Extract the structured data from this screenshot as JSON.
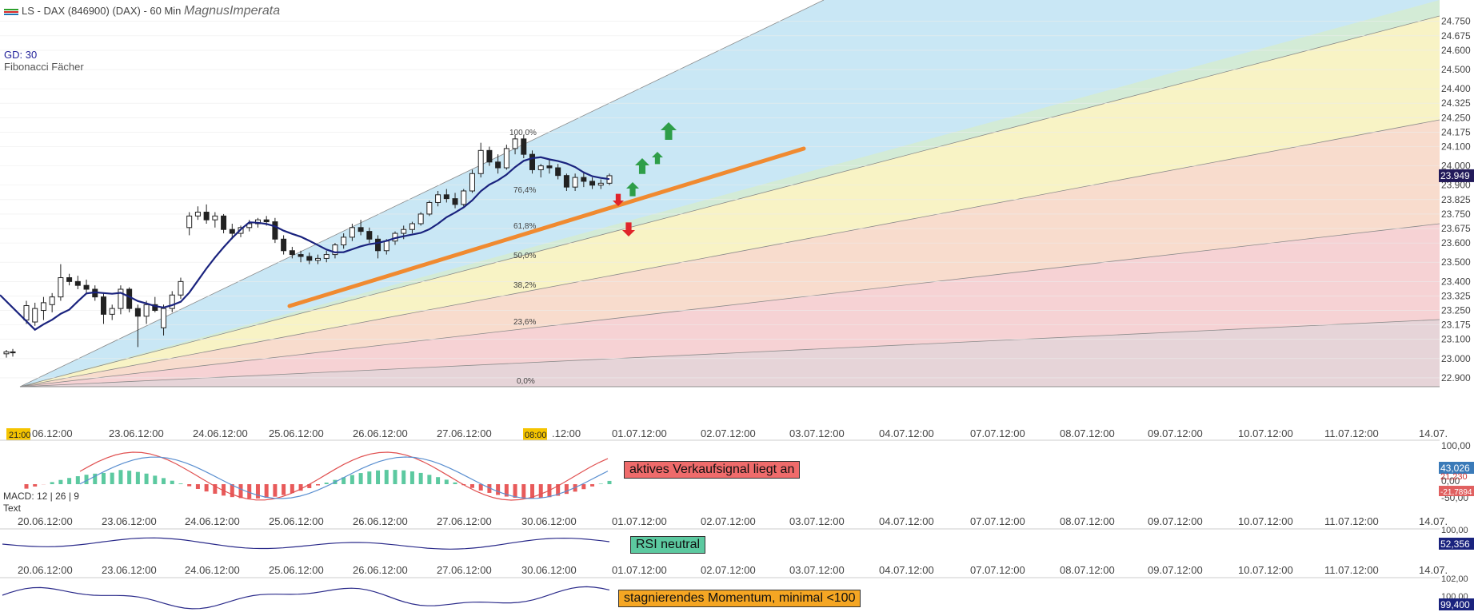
{
  "header": {
    "symbol": "LS - DAX (846900) (DAX) - 60 Min",
    "author": "MagnusImperata",
    "gd_label": "GD: 30",
    "fib_label": "Fibonacci Fächer",
    "legend_colors": [
      "#2ca02c",
      "#d62728",
      "#1f77b4"
    ]
  },
  "colors": {
    "fan_blue": "#c9e7f5",
    "fan_green": "#d3ebd6",
    "fan_yellow": "#f8f3c5",
    "fan_orange": "#f8dccd",
    "fan_red": "#f6d2d4",
    "fan_bottom": "#e6d4d8",
    "sma": "#1a237e",
    "trend": "#f08a30",
    "up_arrow": "#2e9e48",
    "down_arrow": "#e0242a",
    "macd_line": "#e05050",
    "signal_line": "#5a8fd0",
    "hist_pos": "#5cc9a0",
    "hist_neg": "#e85a5a",
    "osc_line": "#2a2a8a",
    "last_price_bg": "#221a5a",
    "macd_val_bg": "#3a7ab8",
    "macd_neg_bg": "#e06060"
  },
  "chart_data": {
    "type": "candlestick",
    "title": "LS - DAX (846900) (DAX) - 60 Min",
    "y_ticks": [
      "24.750",
      "24.675",
      "24.600",
      "24.500",
      "24.400",
      "24.325",
      "24.250",
      "24.175",
      "24.100",
      "24.000",
      "23.900",
      "23.825",
      "23.750",
      "23.675",
      "23.600",
      "23.500",
      "23.400",
      "23.325",
      "23.250",
      "23.175",
      "23.100",
      "23.000",
      "22.900"
    ],
    "ylim": [
      22875,
      24840
    ],
    "last_price": "23.949",
    "time_labels": [
      "06.12:00",
      "23.06.12:00",
      "24.06.12:00",
      "25.06.12:00",
      "26.06.12:00",
      "27.06.12:00",
      ".12:00",
      "01.07.12:00",
      "02.07.12:00",
      "03.07.12:00",
      "04.07.12:00",
      "07.07.12:00",
      "08.07.12:00",
      "09.07.12:00",
      "10.07.12:00",
      "11.07.12:00",
      "14.07."
    ],
    "time_badges": [
      "21:00",
      "08:00"
    ],
    "fib_levels": [
      "100,0%",
      "76,4%",
      "61,8%",
      "50,0%",
      "38,2%",
      "23,6%",
      "0,0%"
    ],
    "sma_label": "GD: 30",
    "candles": [
      {
        "o": 23025,
        "h": 23045,
        "l": 23005,
        "c": 23035
      },
      {
        "o": 23035,
        "h": 23050,
        "l": 23010,
        "c": 23030
      },
      {
        "o": 23200,
        "h": 23300,
        "l": 23180,
        "c": 23275
      },
      {
        "o": 23190,
        "h": 23290,
        "l": 23170,
        "c": 23260
      },
      {
        "o": 23250,
        "h": 23320,
        "l": 23200,
        "c": 23290
      },
      {
        "o": 23280,
        "h": 23340,
        "l": 23240,
        "c": 23320
      },
      {
        "o": 23320,
        "h": 23490,
        "l": 23300,
        "c": 23420
      },
      {
        "o": 23420,
        "h": 23440,
        "l": 23380,
        "c": 23400
      },
      {
        "o": 23400,
        "h": 23430,
        "l": 23360,
        "c": 23380
      },
      {
        "o": 23380,
        "h": 23410,
        "l": 23340,
        "c": 23360
      },
      {
        "o": 23360,
        "h": 23380,
        "l": 23300,
        "c": 23320
      },
      {
        "o": 23320,
        "h": 23340,
        "l": 23180,
        "c": 23230
      },
      {
        "o": 23230,
        "h": 23280,
        "l": 23200,
        "c": 23260
      },
      {
        "o": 23260,
        "h": 23380,
        "l": 23230,
        "c": 23360
      },
      {
        "o": 23360,
        "h": 23370,
        "l": 23240,
        "c": 23260
      },
      {
        "o": 23260,
        "h": 23280,
        "l": 23060,
        "c": 23220
      },
      {
        "o": 23220,
        "h": 23300,
        "l": 23180,
        "c": 23280
      },
      {
        "o": 23280,
        "h": 23320,
        "l": 23240,
        "c": 23250
      },
      {
        "o": 23160,
        "h": 23280,
        "l": 23120,
        "c": 23260
      },
      {
        "o": 23260,
        "h": 23350,
        "l": 23240,
        "c": 23330
      },
      {
        "o": 23330,
        "h": 23420,
        "l": 23310,
        "c": 23400
      },
      {
        "o": 23680,
        "h": 23760,
        "l": 23640,
        "c": 23740
      },
      {
        "o": 23740,
        "h": 23790,
        "l": 23720,
        "c": 23760
      },
      {
        "o": 23760,
        "h": 23800,
        "l": 23700,
        "c": 23720
      },
      {
        "o": 23720,
        "h": 23760,
        "l": 23680,
        "c": 23740
      },
      {
        "o": 23740,
        "h": 23750,
        "l": 23650,
        "c": 23670
      },
      {
        "o": 23670,
        "h": 23700,
        "l": 23620,
        "c": 23650
      },
      {
        "o": 23650,
        "h": 23690,
        "l": 23630,
        "c": 23680
      },
      {
        "o": 23680,
        "h": 23720,
        "l": 23660,
        "c": 23700
      },
      {
        "o": 23700,
        "h": 23730,
        "l": 23680,
        "c": 23720
      },
      {
        "o": 23720,
        "h": 23740,
        "l": 23690,
        "c": 23710
      },
      {
        "o": 23710,
        "h": 23730,
        "l": 23600,
        "c": 23620
      },
      {
        "o": 23620,
        "h": 23640,
        "l": 23540,
        "c": 23560
      },
      {
        "o": 23560,
        "h": 23580,
        "l": 23520,
        "c": 23540
      },
      {
        "o": 23540,
        "h": 23560,
        "l": 23500,
        "c": 23530
      },
      {
        "o": 23530,
        "h": 23550,
        "l": 23490,
        "c": 23510
      },
      {
        "o": 23510,
        "h": 23540,
        "l": 23490,
        "c": 23520
      },
      {
        "o": 23520,
        "h": 23560,
        "l": 23500,
        "c": 23540
      },
      {
        "o": 23540,
        "h": 23600,
        "l": 23520,
        "c": 23590
      },
      {
        "o": 23590,
        "h": 23650,
        "l": 23570,
        "c": 23630
      },
      {
        "o": 23630,
        "h": 23700,
        "l": 23610,
        "c": 23680
      },
      {
        "o": 23680,
        "h": 23720,
        "l": 23640,
        "c": 23660
      },
      {
        "o": 23660,
        "h": 23680,
        "l": 23600,
        "c": 23620
      },
      {
        "o": 23620,
        "h": 23640,
        "l": 23520,
        "c": 23560
      },
      {
        "o": 23560,
        "h": 23620,
        "l": 23540,
        "c": 23610
      },
      {
        "o": 23610,
        "h": 23660,
        "l": 23590,
        "c": 23650
      },
      {
        "o": 23650,
        "h": 23690,
        "l": 23620,
        "c": 23670
      },
      {
        "o": 23670,
        "h": 23710,
        "l": 23650,
        "c": 23700
      },
      {
        "o": 23700,
        "h": 23760,
        "l": 23690,
        "c": 23750
      },
      {
        "o": 23750,
        "h": 23820,
        "l": 23740,
        "c": 23810
      },
      {
        "o": 23810,
        "h": 23870,
        "l": 23790,
        "c": 23850
      },
      {
        "o": 23850,
        "h": 23880,
        "l": 23810,
        "c": 23830
      },
      {
        "o": 23830,
        "h": 23860,
        "l": 23780,
        "c": 23800
      },
      {
        "o": 23800,
        "h": 23880,
        "l": 23790,
        "c": 23870
      },
      {
        "o": 23870,
        "h": 23980,
        "l": 23860,
        "c": 23960
      },
      {
        "o": 23960,
        "h": 24120,
        "l": 23940,
        "c": 24080
      },
      {
        "o": 24080,
        "h": 24100,
        "l": 24000,
        "c": 24020
      },
      {
        "o": 24020,
        "h": 24060,
        "l": 23960,
        "c": 23990
      },
      {
        "o": 23990,
        "h": 24110,
        "l": 23980,
        "c": 24090
      },
      {
        "o": 24090,
        "h": 24160,
        "l": 24060,
        "c": 24140
      },
      {
        "o": 24140,
        "h": 24160,
        "l": 24040,
        "c": 24060
      },
      {
        "o": 24060,
        "h": 24080,
        "l": 23960,
        "c": 23980
      },
      {
        "o": 23980,
        "h": 24010,
        "l": 23940,
        "c": 24000
      },
      {
        "o": 24000,
        "h": 24030,
        "l": 23960,
        "c": 23990
      },
      {
        "o": 23990,
        "h": 24010,
        "l": 23930,
        "c": 23950
      },
      {
        "o": 23950,
        "h": 23960,
        "l": 23870,
        "c": 23890
      },
      {
        "o": 23890,
        "h": 23960,
        "l": 23870,
        "c": 23940
      },
      {
        "o": 23940,
        "h": 23970,
        "l": 23890,
        "c": 23920
      },
      {
        "o": 23920,
        "h": 23940,
        "l": 23880,
        "c": 23900
      },
      {
        "o": 23900,
        "h": 23930,
        "l": 23880,
        "c": 23910
      },
      {
        "o": 23910,
        "h": 23960,
        "l": 23900,
        "c": 23949
      }
    ],
    "indicators": [
      {
        "name": "MACD",
        "label": "MACD: 12 | 26 | 9",
        "text_label": "Text",
        "ticks": [
          "100,00",
          "0,00",
          "-50,00"
        ],
        "values": [
          "43,026",
          "21,230",
          "-21,7894"
        ],
        "signal_text": "aktives Verkaufsignal liegt an"
      },
      {
        "name": "RSI",
        "ticks": [
          "100,00"
        ],
        "values": [
          "52,356"
        ],
        "signal_text": "RSI neutral"
      },
      {
        "name": "Momentum",
        "ticks": [
          "102,00",
          "100,00"
        ],
        "values": [
          "99,400"
        ],
        "signal_text": "stagnierendes Momentum, minimal <100"
      }
    ],
    "indicator_time_labels": [
      "20.06.12:00",
      "23.06.12:00",
      "24.06.12:00",
      "25.06.12:00",
      "26.06.12:00",
      "27.06.12:00",
      "30.06.12:00",
      "01.07.12:00",
      "02.07.12:00",
      "03.07.12:00",
      "04.07.12:00",
      "07.07.12:00",
      "08.07.12:00",
      "09.07.12:00",
      "10.07.12:00",
      "11.07.12:00",
      "14.07."
    ]
  }
}
